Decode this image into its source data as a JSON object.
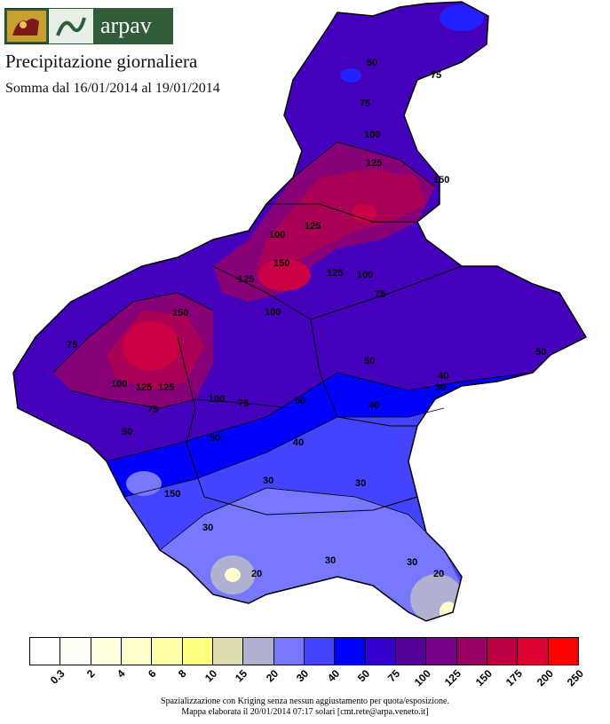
{
  "header": {
    "logo_text": "arpav",
    "title": "Precipitazione giornaliera",
    "subtitle": "Somma dal 16/01/2014 al 19/01/2014"
  },
  "legend": {
    "classes": [
      {
        "label": "0.3",
        "color": "#ffffff"
      },
      {
        "label": "2",
        "color": "#fffff5"
      },
      {
        "label": "4",
        "color": "#ffffe0"
      },
      {
        "label": "6",
        "color": "#ffffcc"
      },
      {
        "label": "8",
        "color": "#ffffa8"
      },
      {
        "label": "10",
        "color": "#ffff80"
      },
      {
        "label": "15",
        "color": "#ddddb0"
      },
      {
        "label": "20",
        "color": "#b0b0d0"
      },
      {
        "label": "30",
        "color": "#7777ff"
      },
      {
        "label": "40",
        "color": "#4444ff"
      },
      {
        "label": "50",
        "color": "#0000ff"
      },
      {
        "label": "75",
        "color": "#3300cc"
      },
      {
        "label": "100",
        "color": "#550099"
      },
      {
        "label": "125",
        "color": "#770088"
      },
      {
        "label": "150",
        "color": "#990066"
      },
      {
        "label": "175",
        "color": "#bb0044"
      },
      {
        "label": "200",
        "color": "#dd0033"
      },
      {
        "label": "250",
        "color": "#ff0000"
      }
    ]
  },
  "contour_labels": [
    "50",
    "75",
    "75",
    "100",
    "125",
    "150",
    "100",
    "125",
    "125",
    "150",
    "125",
    "100",
    "75",
    "100",
    "150",
    "100",
    "125",
    "75",
    "100",
    "75",
    "50",
    "50",
    "40",
    "30",
    "40",
    "50",
    "30",
    "30",
    "40",
    "50",
    "30",
    "30",
    "30",
    "20",
    "20",
    "50",
    "150",
    "125",
    "75"
  ],
  "footer": {
    "line1": "Spazializzazione con Kriging senza nessun aggiustamento per quota/esposizione.",
    "line2": "Mappa elaborata il 20/01/2014 07:17 solari [cmt.rete@arpa.veneto.it]"
  }
}
